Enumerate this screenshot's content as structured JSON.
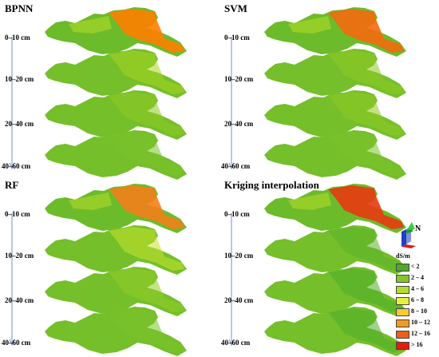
{
  "panels": [
    {
      "title": "BPNN",
      "depths": [
        "0–10 cm",
        "10–20 cm",
        "20–40 cm",
        "40–60 cm"
      ],
      "colors": [
        "#ff7f00",
        "#a8d420",
        "#8fcb25",
        "#7cc229"
      ]
    },
    {
      "title": "SVM",
      "depths": [
        "0–10 cm",
        "10–20 cm",
        "20–40 cm",
        "40–60 cm"
      ],
      "colors": [
        "#f46a10",
        "#8fcb25",
        "#8fcb25",
        "#7cc229"
      ]
    },
    {
      "title": "RF",
      "depths": [
        "0–10 cm",
        "10–20 cm",
        "20–40 cm",
        "40–60 cm"
      ],
      "colors": [
        "#f4801a",
        "#c6e32a",
        "#94cd27",
        "#7cc229"
      ]
    },
    {
      "title": "Kriging interpolation",
      "depths": [
        "0–10 cm",
        "10–20 cm",
        "20–40 cm",
        "40–60 cm"
      ],
      "colors": [
        "#e83a10",
        "#5bb32a",
        "#4fad29",
        "#4fad29"
      ]
    }
  ],
  "north": {
    "label": "N"
  },
  "legend": {
    "unit": "dS/m",
    "items": [
      {
        "label": "< 2",
        "color": "#4daa29"
      },
      {
        "label": "2 – 4",
        "color": "#82c62a"
      },
      {
        "label": "4 – 6",
        "color": "#b3dc2d"
      },
      {
        "label": "6 – 8",
        "color": "#e6f03c"
      },
      {
        "label": "8 – 10",
        "color": "#fbc932"
      },
      {
        "label": "10 – 12",
        "color": "#f49a22"
      },
      {
        "label": "12 – 16",
        "color": "#ee5e16"
      },
      {
        "label": "> 16",
        "color": "#e51b0e"
      }
    ]
  }
}
